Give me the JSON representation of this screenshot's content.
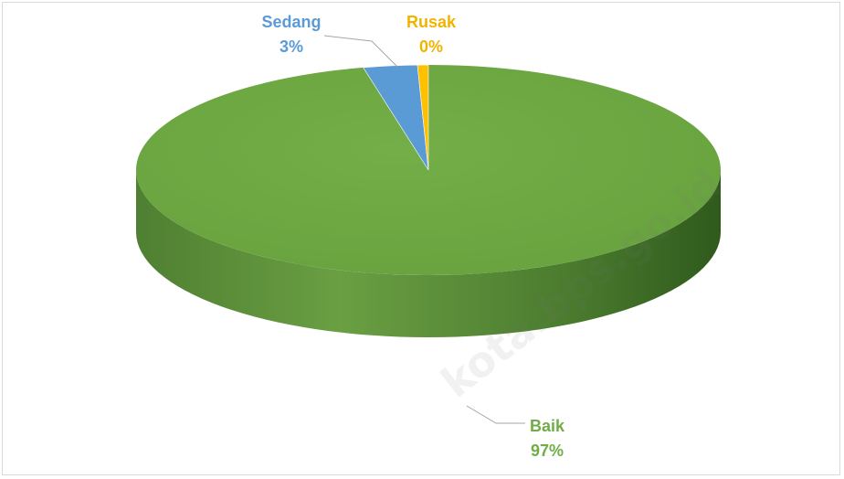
{
  "chart_data": {
    "type": "pie",
    "style": "3d",
    "title": "",
    "categories": [
      "Baik",
      "Sedang",
      "Rusak"
    ],
    "values": [
      97,
      3,
      0
    ],
    "percent_labels": [
      "97%",
      "3%",
      "0%"
    ],
    "colors": [
      "#70ad47",
      "#5b9bd5",
      "#ffc000"
    ],
    "legend": "none",
    "data_labels": "outside with leader lines"
  },
  "watermark": {
    "text": "kota.bps.go.id"
  }
}
